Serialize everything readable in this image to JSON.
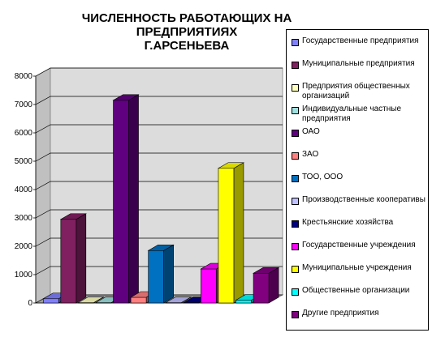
{
  "title_line1": "ЧИСЛЕННОСТЬ РАБОТАЮЩИХ НА ПРЕДПРИЯТИЯХ",
  "title_line2": "Г.АРСЕНЬЕВА",
  "chart_data": {
    "type": "bar",
    "title": "ЧИСЛЕННОСТЬ РАБОТАЮЩИХ НА ПРЕДПРИЯТИЯХ Г.АРСЕНЬЕВА",
    "xlabel": "",
    "ylabel": "",
    "ylim": [
      0,
      8000
    ],
    "yticks": [
      0,
      1000,
      2000,
      3000,
      4000,
      5000,
      6000,
      7000,
      8000
    ],
    "grid": true,
    "legend_position": "right",
    "chart_style": "3d-column",
    "series": [
      {
        "name": "Государственные предприятия",
        "value": 150,
        "color": "#8080ff"
      },
      {
        "name": "Муниципальные предприятия",
        "value": 2950,
        "color": "#802060"
      },
      {
        "name": "Предприятия общественных организаций",
        "value": 10,
        "color": "#ffffc0"
      },
      {
        "name": "Индивидуальные частные предприятия",
        "value": 10,
        "color": "#a0e0e0"
      },
      {
        "name": "ОАО",
        "value": 7150,
        "color": "#600080"
      },
      {
        "name": "ЗАО",
        "value": 200,
        "color": "#ff8080"
      },
      {
        "name": "ТОО, ООО",
        "value": 1850,
        "color": "#0070c0"
      },
      {
        "name": "Производственные кооперативы",
        "value": 10,
        "color": "#c0c0ff"
      },
      {
        "name": "Крестьянские хозяйства",
        "value": 10,
        "color": "#000080"
      },
      {
        "name": "Государственные учреждения",
        "value": 1200,
        "color": "#ff00ff"
      },
      {
        "name": "Муниципальные учреждения",
        "value": 4750,
        "color": "#ffff00"
      },
      {
        "name": "Общественные организации",
        "value": 100,
        "color": "#00ffff"
      },
      {
        "name": "Другие предприятия",
        "value": 1050,
        "color": "#800080"
      }
    ]
  }
}
